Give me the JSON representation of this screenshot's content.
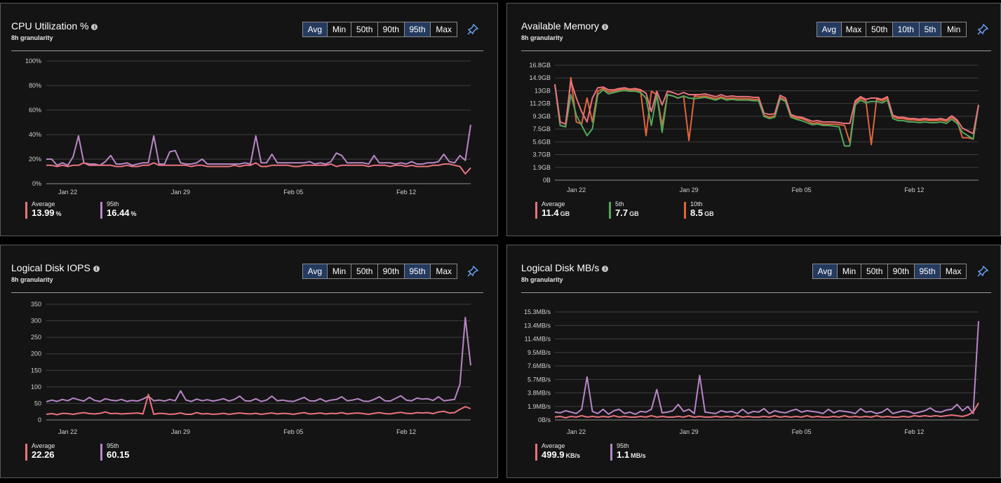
{
  "colors": {
    "series_pink": "#e8737e",
    "series_purple": "#b886c6",
    "series_green": "#54a65b",
    "series_orange": "#e2643c",
    "grid": "#3e3e3e",
    "axis": "#8a8a8a"
  },
  "panels": [
    {
      "title": "CPU Utilization %",
      "subtitle": "8h granularity",
      "buttons": [
        {
          "label": "Avg",
          "active": true
        },
        {
          "label": "Min",
          "active": false
        },
        {
          "label": "50th",
          "active": false
        },
        {
          "label": "90th",
          "active": false
        },
        {
          "label": "95th",
          "active": true
        },
        {
          "label": "Max",
          "active": false
        }
      ],
      "legend": [
        {
          "name": "Average",
          "value": "13.99",
          "unit": "%",
          "color": "#e8737e"
        },
        {
          "name": "95th",
          "value": "16.44",
          "unit": "%",
          "color": "#b886c6"
        }
      ]
    },
    {
      "title": "Available Memory",
      "subtitle": "8h granularity",
      "buttons": [
        {
          "label": "Avg",
          "active": true
        },
        {
          "label": "Max",
          "active": false
        },
        {
          "label": "50th",
          "active": false
        },
        {
          "label": "10th",
          "active": true
        },
        {
          "label": "5th",
          "active": true
        },
        {
          "label": "Min",
          "active": false
        }
      ],
      "legend": [
        {
          "name": "Average",
          "value": "11.4",
          "unit": "GB",
          "color": "#e8737e"
        },
        {
          "name": "5th",
          "value": "7.7",
          "unit": "GB",
          "color": "#54a65b"
        },
        {
          "name": "10th",
          "value": "8.5",
          "unit": "GB",
          "color": "#e2643c"
        }
      ]
    },
    {
      "title": "Logical Disk IOPS",
      "subtitle": "8h granularity",
      "buttons": [
        {
          "label": "Avg",
          "active": true
        },
        {
          "label": "Min",
          "active": false
        },
        {
          "label": "50th",
          "active": false
        },
        {
          "label": "90th",
          "active": false
        },
        {
          "label": "95th",
          "active": true
        },
        {
          "label": "Max",
          "active": false
        }
      ],
      "legend": [
        {
          "name": "Average",
          "value": "22.26",
          "unit": "",
          "color": "#e8737e"
        },
        {
          "name": "95th",
          "value": "60.15",
          "unit": "",
          "color": "#b886c6"
        }
      ]
    },
    {
      "title": "Logical Disk MB/s",
      "subtitle": "8h granularity",
      "buttons": [
        {
          "label": "Avg",
          "active": true
        },
        {
          "label": "Min",
          "active": false
        },
        {
          "label": "50th",
          "active": false
        },
        {
          "label": "90th",
          "active": false
        },
        {
          "label": "95th",
          "active": true
        },
        {
          "label": "Max",
          "active": false
        }
      ],
      "legend": [
        {
          "name": "Average",
          "value": "499.9",
          "unit": "KB/s",
          "color": "#e8737e"
        },
        {
          "name": "95th",
          "value": "1.1",
          "unit": "MB/s",
          "color": "#b886c6"
        }
      ]
    }
  ],
  "chart_data": [
    {
      "type": "line",
      "title": "CPU Utilization %",
      "x_ticks": [
        "Jan 22",
        "Jan 29",
        "Feb 05",
        "Feb 12"
      ],
      "x_tick_pos": [
        4,
        25,
        46,
        67
      ],
      "y_ticks": [
        "0%",
        "20%",
        "40%",
        "60%",
        "80%",
        "100%"
      ],
      "ylim": [
        0,
        100
      ],
      "series": [
        {
          "name": "Average",
          "color": "#e8737e",
          "values": [
            15,
            15,
            14,
            15,
            14,
            15,
            15,
            17,
            15,
            15,
            15,
            15,
            15,
            14,
            14,
            15,
            14,
            14,
            15,
            15,
            17,
            15,
            15,
            15,
            15,
            15,
            15,
            14,
            15,
            15,
            14,
            14,
            14,
            14,
            14,
            15,
            14,
            15,
            15,
            17,
            14,
            14,
            15,
            15,
            15,
            15,
            14,
            14,
            15,
            15,
            15,
            15,
            15,
            16,
            14,
            15,
            15,
            15,
            15,
            15,
            14,
            15,
            15,
            15,
            14,
            15,
            15,
            14,
            15,
            14,
            14,
            14,
            15,
            15,
            16,
            16,
            15,
            14,
            8,
            13
          ]
        },
        {
          "name": "95th",
          "color": "#b886c6",
          "values": [
            20,
            20,
            15,
            17,
            15,
            22,
            39,
            17,
            16,
            16,
            15,
            18,
            23,
            16,
            16,
            17,
            15,
            16,
            17,
            17,
            39,
            16,
            16,
            26,
            27,
            17,
            16,
            16,
            17,
            20,
            16,
            16,
            16,
            16,
            16,
            16,
            16,
            17,
            16,
            39,
            17,
            17,
            24,
            17,
            17,
            17,
            17,
            17,
            17,
            18,
            16,
            17,
            16,
            18,
            25,
            23,
            17,
            17,
            17,
            17,
            16,
            23,
            17,
            17,
            17,
            16,
            17,
            16,
            18,
            16,
            16,
            17,
            17,
            18,
            24,
            18,
            17,
            23,
            19,
            48
          ]
        }
      ]
    },
    {
      "type": "line",
      "title": "Available Memory",
      "x_ticks": [
        "Jan 22",
        "Jan 29",
        "Feb 05",
        "Feb 12"
      ],
      "x_tick_pos": [
        4,
        25,
        46,
        67
      ],
      "y_ticks": [
        "0B",
        "1.9GB",
        "3.7GB",
        "5.6GB",
        "7.5GB",
        "9.3GB",
        "11.2GB",
        "13GB",
        "14.9GB",
        "16.8GB"
      ],
      "ylim": [
        0,
        16.8
      ],
      "series": [
        {
          "name": "Average",
          "color": "#e8737e",
          "values": [
            14,
            8.5,
            8.2,
            14.5,
            12,
            10,
            8.5,
            12,
            13.5,
            13.6,
            13.2,
            13.2,
            13.4,
            13.5,
            13.3,
            13.4,
            13.2,
            12.7,
            10,
            13,
            11,
            13,
            12.8,
            12.5,
            12.8,
            12.5,
            12.5,
            12.5,
            12.6,
            12.4,
            12.2,
            12.5,
            12.2,
            12.3,
            12.2,
            12.2,
            12.2,
            12.1,
            12.1,
            9.8,
            9.6,
            9.7,
            12.4,
            12,
            9.6,
            9.3,
            9.2,
            8.9,
            8.6,
            8.7,
            8.5,
            8.5,
            8.5,
            8.4,
            8.3,
            8.3,
            11.6,
            12.2,
            11.8,
            12,
            12,
            11.8,
            12.2,
            9.5,
            9.2,
            9.2,
            9,
            9,
            8.9,
            9,
            8.9,
            8.9,
            9,
            8.8,
            9.4,
            8.8,
            7.6,
            7.2,
            6.8,
            11
          ]
        },
        {
          "name": "5th",
          "color": "#54a65b",
          "values": [
            14,
            8,
            7.8,
            12.5,
            9.5,
            8,
            6.5,
            7.5,
            12.5,
            13.2,
            12.6,
            12.8,
            13,
            13.1,
            13,
            13,
            12.8,
            12,
            8,
            12.5,
            7,
            12.5,
            12.3,
            12,
            12.3,
            12,
            11.9,
            12,
            12.1,
            11.9,
            11.7,
            12,
            11.7,
            11.8,
            11.7,
            11.7,
            11.7,
            11.6,
            11.6,
            9.3,
            9,
            9.2,
            11.9,
            11.5,
            9.2,
            8.9,
            8.7,
            8.4,
            8.1,
            8.2,
            8,
            8,
            7.9,
            7.8,
            5,
            5,
            11,
            11.7,
            11.3,
            11.5,
            11.5,
            11.3,
            11.7,
            9,
            8.7,
            8.7,
            8.5,
            8.5,
            8.4,
            8.5,
            8.4,
            8.4,
            8.5,
            8.3,
            8.9,
            8.3,
            7,
            6.5,
            6,
            11
          ]
        },
        {
          "name": "10th",
          "color": "#e2643c",
          "values": [
            14,
            8,
            7.8,
            15,
            8.5,
            8.2,
            12,
            8.5,
            13,
            13.4,
            12.9,
            13,
            13.2,
            13.3,
            13.1,
            13.2,
            13,
            6.5,
            13,
            12.5,
            8,
            12.5,
            12.3,
            12,
            12.3,
            5.8,
            12.3,
            12.2,
            12.3,
            12.1,
            11.9,
            12.2,
            11.9,
            12,
            11.9,
            11.9,
            11.9,
            11.8,
            11.8,
            9.5,
            9.2,
            9.4,
            12.1,
            11.7,
            9.4,
            9.1,
            9,
            8.7,
            8.3,
            8.4,
            8.2,
            8.2,
            8.2,
            8.1,
            8,
            5.5,
            11.3,
            12,
            11.6,
            5.2,
            11.8,
            11.6,
            12,
            9.3,
            9,
            9,
            8.8,
            8.8,
            8.7,
            8.8,
            8.7,
            8.7,
            8.8,
            8.6,
            9.2,
            8.6,
            6.2,
            6.2,
            6,
            11
          ]
        }
      ]
    },
    {
      "type": "line",
      "title": "Logical Disk IOPS",
      "x_ticks": [
        "Jan 22",
        "Jan 29",
        "Feb 05",
        "Feb 12"
      ],
      "x_tick_pos": [
        4,
        25,
        46,
        67
      ],
      "y_ticks": [
        "0",
        "50",
        "100",
        "150",
        "200",
        "250",
        "300",
        "350"
      ],
      "ylim": [
        0,
        350
      ],
      "series": [
        {
          "name": "Average",
          "color": "#e8737e",
          "values": [
            17,
            19,
            16,
            20,
            19,
            17,
            20,
            22,
            19,
            18,
            20,
            24,
            19,
            20,
            18,
            19,
            20,
            21,
            18,
            77,
            17,
            20,
            19,
            17,
            18,
            21,
            17,
            17,
            22,
            18,
            19,
            17,
            18,
            20,
            17,
            19,
            21,
            19,
            18,
            20,
            17,
            19,
            21,
            18,
            20,
            19,
            17,
            20,
            22,
            18,
            19,
            21,
            18,
            20,
            19,
            22,
            18,
            20,
            21,
            19,
            17,
            20,
            22,
            19,
            18,
            21,
            23,
            20,
            19,
            22,
            21,
            22,
            19,
            24,
            26,
            21,
            22,
            32,
            40,
            34
          ]
        },
        {
          "name": "95th",
          "color": "#b886c6",
          "values": [
            55,
            60,
            56,
            62,
            58,
            66,
            61,
            57,
            68,
            59,
            56,
            64,
            60,
            58,
            62,
            56,
            59,
            57,
            63,
            72,
            58,
            60,
            57,
            62,
            58,
            88,
            60,
            56,
            63,
            58,
            61,
            57,
            60,
            64,
            57,
            62,
            72,
            58,
            57,
            64,
            56,
            60,
            72,
            58,
            60,
            57,
            56,
            62,
            68,
            58,
            57,
            64,
            56,
            60,
            62,
            70,
            58,
            60,
            64,
            57,
            56,
            62,
            70,
            58,
            57,
            65,
            73,
            60,
            58,
            66,
            63,
            64,
            59,
            70,
            58,
            60,
            62,
            108,
            310,
            165
          ]
        }
      ]
    },
    {
      "type": "line",
      "title": "Logical Disk MB/s",
      "x_ticks": [
        "Jan 22",
        "Jan 29",
        "Feb 05",
        "Feb 12"
      ],
      "x_tick_pos": [
        4,
        25,
        46,
        67
      ],
      "y_ticks": [
        "0B/s",
        "1.9MB/s",
        "3.8MB/s",
        "5.7MB/s",
        "7.6MB/s",
        "9.5MB/s",
        "11.4MB/s",
        "13.4MB/s",
        "15.3MB/s"
      ],
      "ylim": [
        0,
        15.3
      ],
      "series": [
        {
          "name": "Average",
          "color": "#e8737e",
          "values": [
            0.4,
            0.5,
            0.3,
            0.5,
            0.4,
            0.6,
            0.4,
            0.5,
            0.4,
            0.5,
            0.4,
            0.6,
            0.4,
            0.5,
            0.4,
            0.4,
            0.5,
            0.4,
            0.6,
            0.4,
            0.5,
            0.4,
            0.4,
            0.5,
            0.4,
            0.6,
            0.4,
            0.5,
            0.4,
            0.4,
            0.5,
            0.4,
            0.5,
            0.4,
            0.6,
            0.4,
            0.5,
            0.4,
            0.4,
            0.5,
            0.4,
            0.6,
            0.4,
            0.5,
            0.4,
            0.5,
            0.4,
            0.6,
            0.4,
            0.5,
            0.4,
            0.4,
            0.5,
            0.4,
            0.6,
            0.4,
            0.5,
            0.4,
            0.5,
            0.4,
            0.6,
            0.4,
            0.5,
            0.4,
            0.4,
            0.5,
            0.4,
            0.6,
            0.5,
            0.6,
            0.5,
            0.6,
            0.5,
            0.6,
            0.7,
            0.6,
            0.5,
            0.7,
            1.1,
            2.4
          ]
        },
        {
          "name": "95th",
          "color": "#b886c6",
          "values": [
            1.1,
            1,
            1.3,
            1.1,
            0.9,
            1.5,
            6.1,
            1.2,
            0.9,
            1.5,
            0.8,
            1.3,
            1.5,
            0.9,
            1.1,
            0.8,
            1.2,
            1.1,
            1.5,
            4.3,
            1.0,
            1.1,
            1.3,
            2.2,
            1.2,
            1.5,
            0.9,
            6.3,
            1.1,
            1,
            0.9,
            1.3,
            1.1,
            1.2,
            0.9,
            1.5,
            0.9,
            1.2,
            1.1,
            1.6,
            0.9,
            1.3,
            1.1,
            1,
            1.3,
            1.5,
            1.1,
            1.3,
            1.2,
            1.1,
            0.9,
            1.5,
            1,
            1.3,
            1.2,
            1.1,
            0.9,
            1.6,
            1.1,
            1.2,
            0.9,
            1.1,
            1.6,
            0.9,
            1.1,
            1.3,
            1.2,
            0.9,
            1.1,
            1.3,
            1.7,
            1.2,
            1.1,
            1.4,
            1.5,
            2.2,
            1.3,
            1.9,
            0.9,
            14
          ]
        }
      ]
    }
  ]
}
